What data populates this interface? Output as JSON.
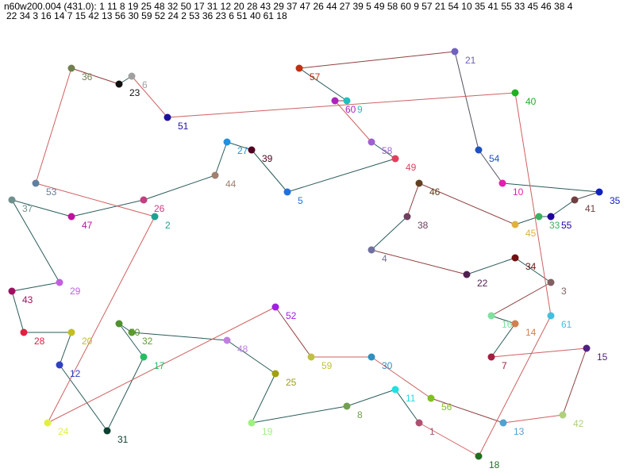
{
  "header": {
    "lines": [
      "n60w200.004 (431.0): 1 11 8 19 25 48 32 50 17 31 12 20 28 43 29 37 47 26 44 27 39 5 49 58 60 9 57 21 54 10 35 41 55 33 45 46 38 4",
      "22 34 3 16 14 7 15 42 13 56 30 59 52 24 2 53 36 23 6 51 40 61 18"
    ]
  },
  "nodes": {
    "labels": [
      1,
      2,
      3,
      4,
      5,
      6,
      7,
      8,
      9,
      10,
      11,
      12,
      13,
      14,
      15,
      16,
      17,
      18,
      19,
      20,
      21,
      22,
      23,
      24,
      25,
      26,
      27,
      28,
      29,
      30,
      31,
      32,
      33,
      34,
      35,
      36,
      37,
      38,
      39,
      40,
      41,
      42,
      43,
      44,
      45,
      46,
      47,
      48,
      49,
      50,
      51,
      52,
      53,
      54,
      55,
      56,
      57,
      58,
      59,
      60,
      61
    ]
  }
}
